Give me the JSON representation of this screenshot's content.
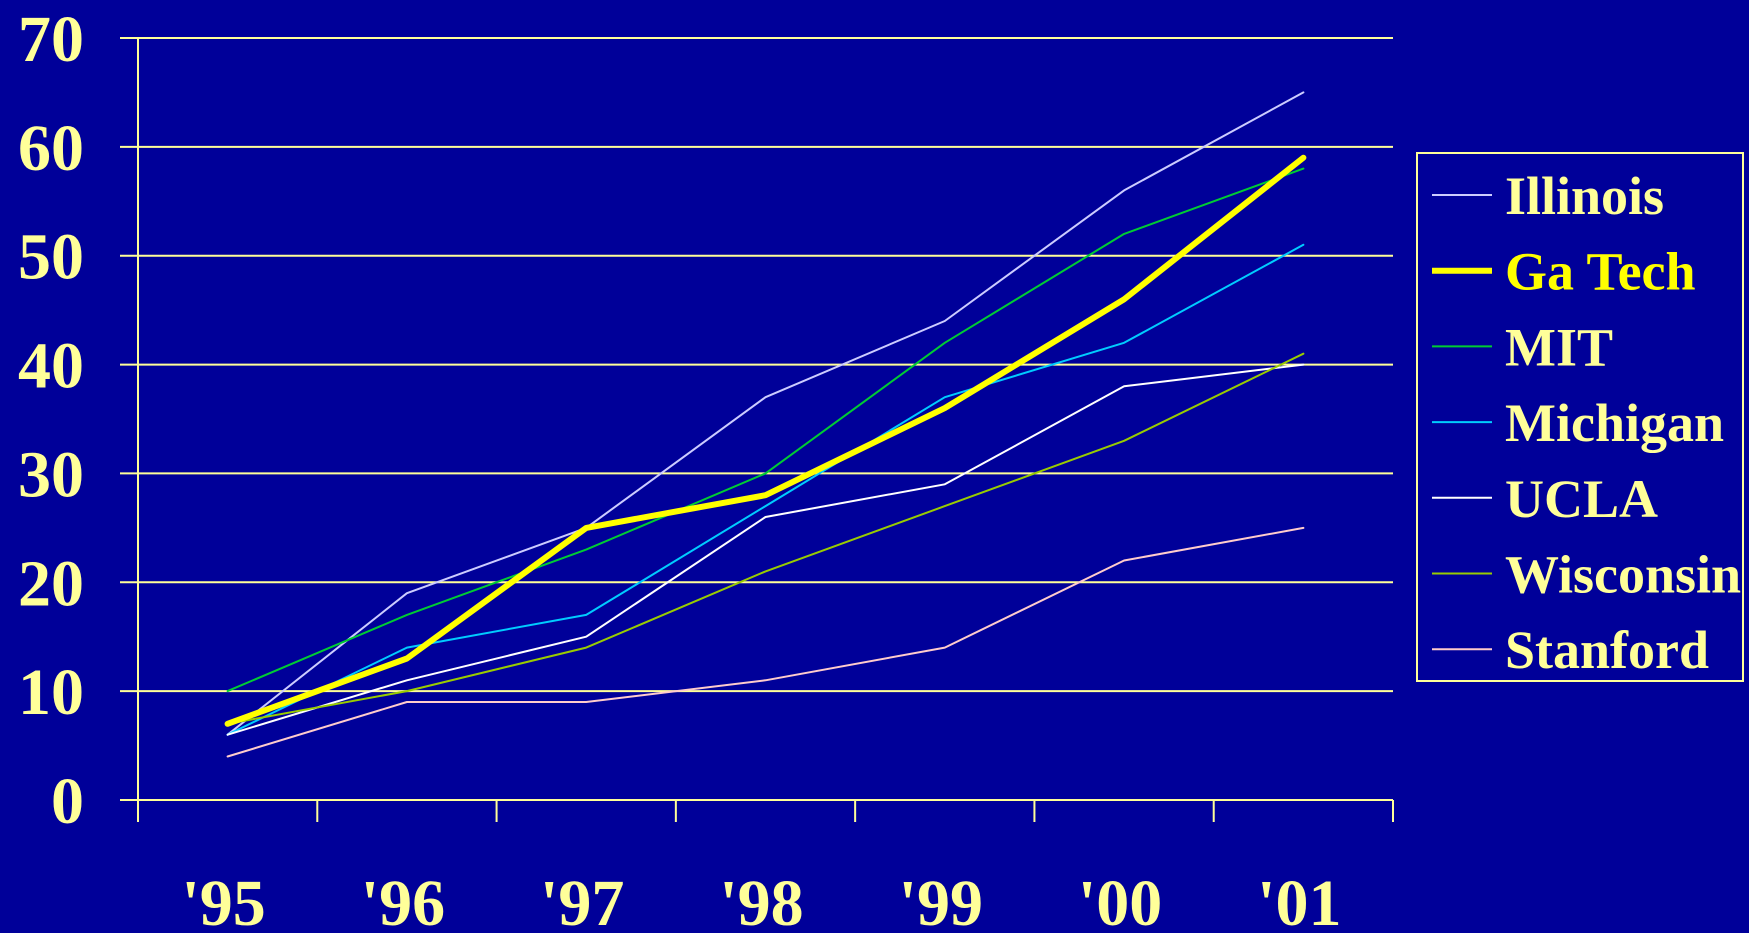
{
  "colors": {
    "background": "#000099",
    "axis": "#ffff99",
    "grid": "#ffff99",
    "text": "#ffff99",
    "legend_border": "#ffff99"
  },
  "chart_data": {
    "type": "line",
    "x": [
      "'95",
      "'96",
      "'97",
      "'98",
      "'99",
      "'00",
      "'01"
    ],
    "ylim": [
      0,
      70
    ],
    "yticks": [
      0,
      10,
      20,
      30,
      40,
      50,
      60,
      70
    ],
    "grid": true,
    "legend_position": "right",
    "series": [
      {
        "name": "Illinois",
        "color": "#ccccff",
        "emphasis": false,
        "values": [
          6,
          19,
          25,
          37,
          44,
          56,
          65
        ]
      },
      {
        "name": "Ga Tech",
        "color": "#ffff00",
        "emphasis": true,
        "values": [
          7,
          13,
          25,
          28,
          36,
          46,
          59
        ]
      },
      {
        "name": "MIT",
        "color": "#00cc33",
        "emphasis": false,
        "values": [
          10,
          17,
          23,
          30,
          42,
          52,
          58
        ]
      },
      {
        "name": "Michigan",
        "color": "#00ccff",
        "emphasis": false,
        "values": [
          6,
          14,
          17,
          27,
          37,
          42,
          51
        ]
      },
      {
        "name": "UCLA",
        "color": "#ffffff",
        "emphasis": false,
        "values": [
          6,
          11,
          15,
          26,
          29,
          38,
          40
        ]
      },
      {
        "name": "Wisconsin",
        "color": "#99cc00",
        "emphasis": false,
        "values": [
          7,
          10,
          14,
          21,
          27,
          33,
          41
        ]
      },
      {
        "name": "Stanford",
        "color": "#ffcccc",
        "emphasis": false,
        "values": [
          4,
          9,
          9,
          11,
          14,
          22,
          25
        ]
      }
    ]
  }
}
